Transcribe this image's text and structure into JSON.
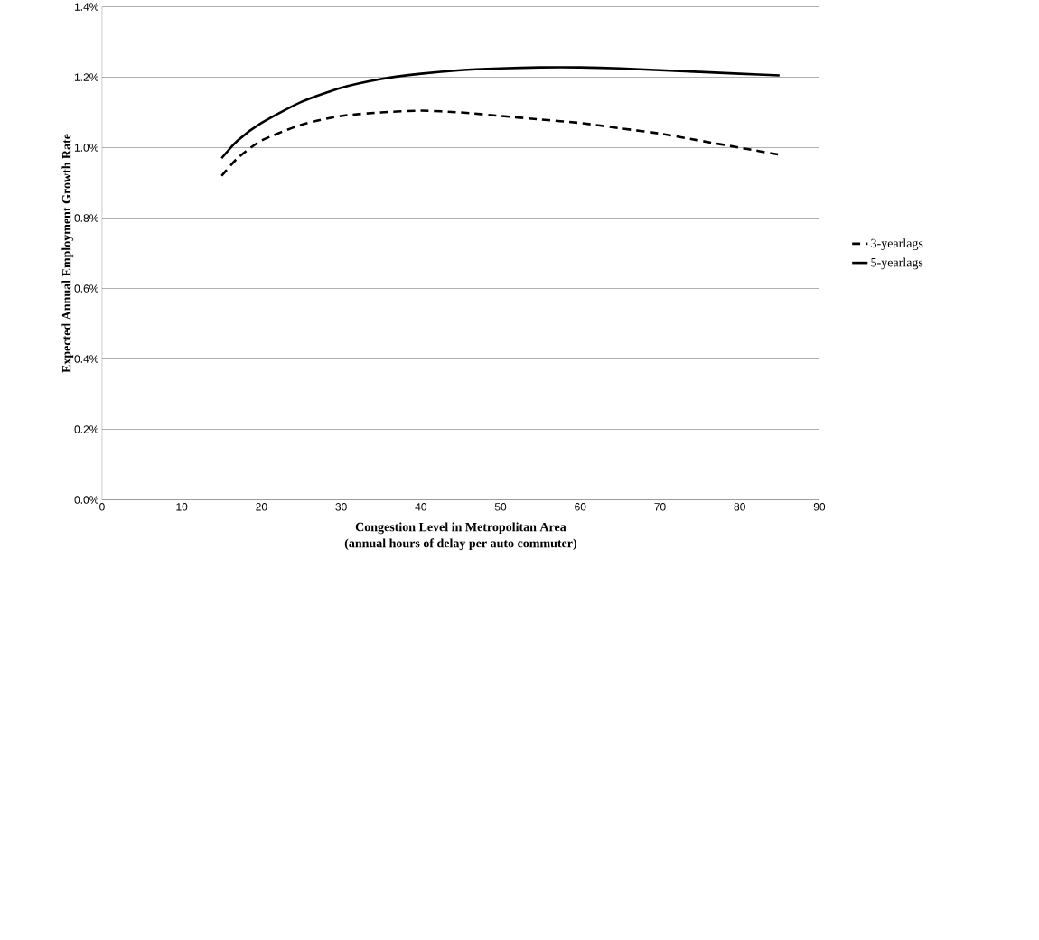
{
  "chart_data": {
    "type": "line",
    "xlabel": "Congestion Level  in Metropolitan Area\n(annual hours of delay per auto commuter)",
    "ylabel": "Expected Annual Employment Growth Rate",
    "x": [
      15,
      17,
      20,
      25,
      30,
      35,
      40,
      45,
      50,
      55,
      60,
      65,
      70,
      75,
      80,
      85
    ],
    "series": [
      {
        "name": "3-yearlags",
        "color": "#000000",
        "line_style": "dashed",
        "values": [
          0.92,
          0.97,
          1.02,
          1.065,
          1.09,
          1.1,
          1.105,
          1.1,
          1.09,
          1.08,
          1.07,
          1.055,
          1.04,
          1.02,
          1.0,
          0.98
        ]
      },
      {
        "name": "5-yearlags",
        "color": "#000000",
        "line_style": "solid",
        "values": [
          0.97,
          1.02,
          1.07,
          1.13,
          1.17,
          1.195,
          1.21,
          1.22,
          1.225,
          1.228,
          1.228,
          1.225,
          1.22,
          1.215,
          1.21,
          1.205
        ]
      }
    ],
    "xlim": [
      0,
      90
    ],
    "xticks": [
      0,
      10,
      20,
      30,
      40,
      50,
      60,
      70,
      80,
      90
    ],
    "ylim": [
      0,
      1.4
    ],
    "yticks": [
      {
        "value": 0,
        "label": "0.0%"
      },
      {
        "value": 0.2,
        "label": "0.2%"
      },
      {
        "value": 0.4,
        "label": "0.4%"
      },
      {
        "value": 0.6,
        "label": "0.6%"
      },
      {
        "value": 0.8,
        "label": "0.8%"
      },
      {
        "value": 1.0,
        "label": "1.0%"
      },
      {
        "value": 1.2,
        "label": "1.2%"
      },
      {
        "value": 1.4,
        "label": "1.4%"
      }
    ],
    "grid": "y",
    "legend": "right",
    "marker": "none"
  }
}
